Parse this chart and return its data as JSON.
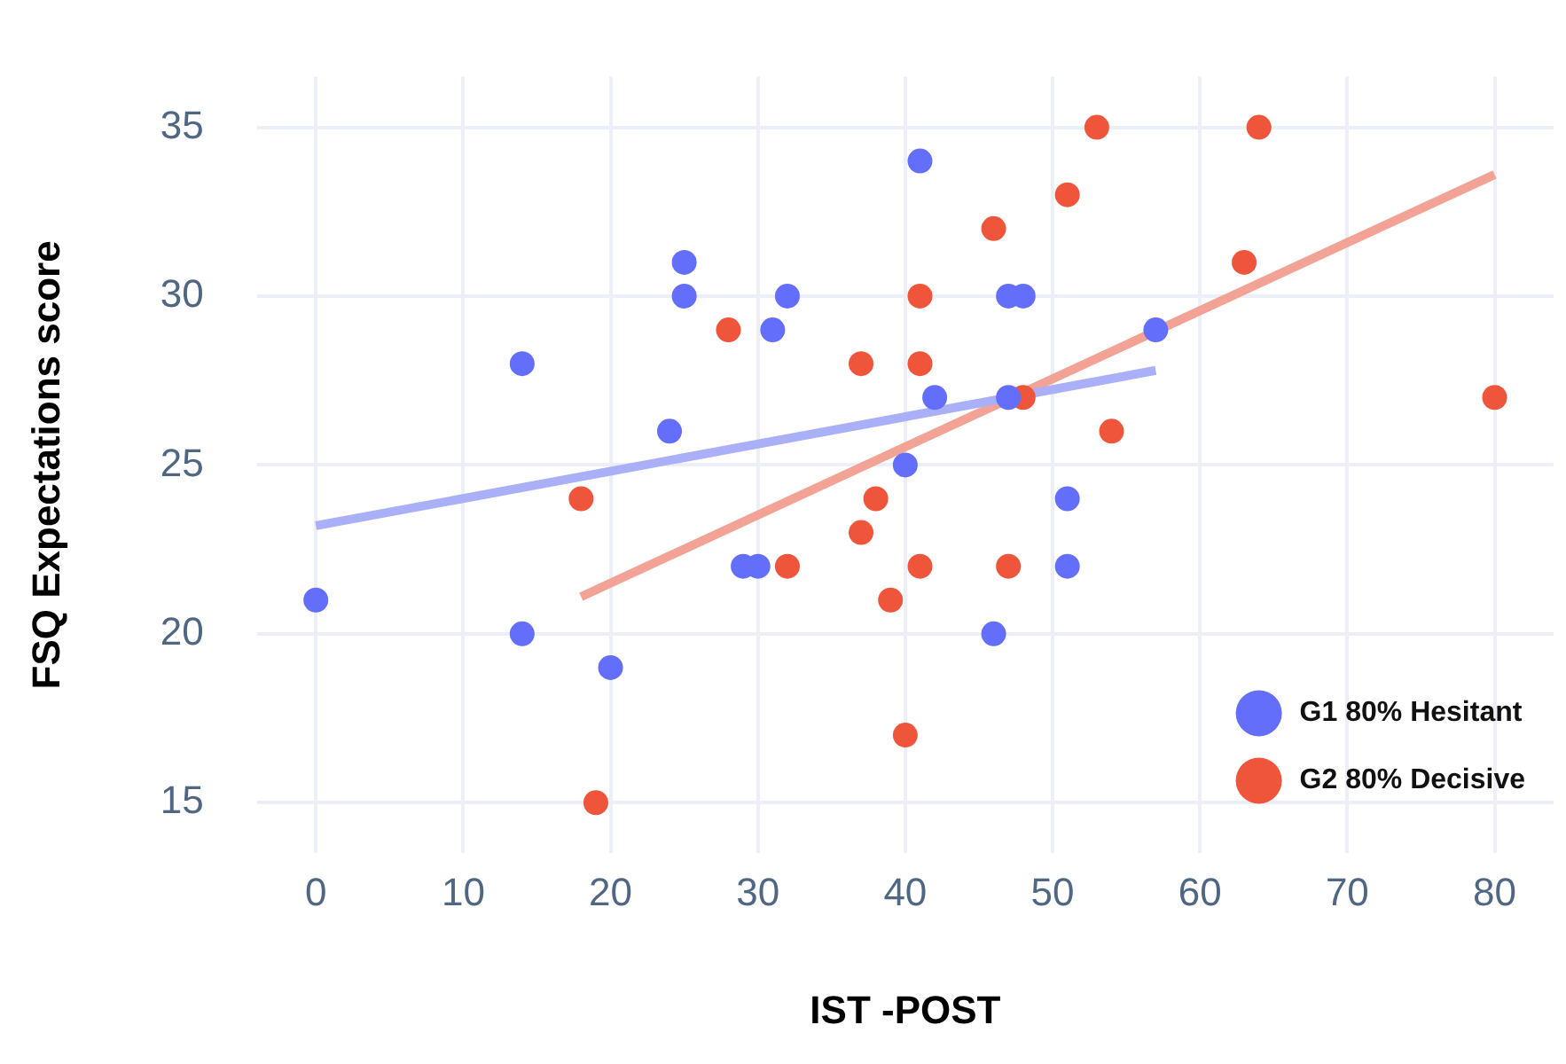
{
  "chart_data": {
    "type": "scatter",
    "xlabel": "IST -POST",
    "ylabel": "FSQ Expectations score",
    "xlim": [
      -4,
      84
    ],
    "xticks": [
      0,
      10,
      20,
      30,
      40,
      50,
      60,
      70,
      80
    ],
    "ylim": [
      13.5,
      36.5
    ],
    "yticks": [
      15,
      20,
      25,
      30,
      35
    ],
    "grid": true,
    "legend": "bottom right",
    "marker": "circle",
    "series": [
      {
        "name": "G1 80% Hesitant",
        "color": "#636efa",
        "x": [
          0,
          14,
          14,
          20,
          24,
          25,
          25,
          29,
          30,
          31,
          32,
          40,
          41,
          42,
          46,
          47,
          48,
          47,
          51,
          51,
          57
        ],
        "values": [
          21,
          28,
          20,
          19,
          26,
          31,
          30,
          22,
          22,
          29,
          30,
          25,
          34,
          27,
          20,
          30,
          30,
          27,
          24,
          22,
          29
        ]
      },
      {
        "name": "G2 80% Decisive",
        "color": "#ef553b",
        "x": [
          18,
          19,
          28,
          32,
          37,
          37,
          38,
          39,
          40,
          41,
          41,
          41,
          46,
          47,
          48,
          51,
          53,
          54,
          63,
          64,
          80
        ],
        "values": [
          24,
          15,
          29,
          22,
          28,
          23,
          24,
          21,
          17,
          30,
          28,
          22,
          32,
          22,
          27,
          33,
          35,
          26,
          31,
          35,
          27
        ]
      },
      {
        "type": "line",
        "color": "#aab0f8",
        "marker": "none",
        "x": [
          0,
          57
        ],
        "values": [
          23.2,
          27.8
        ]
      },
      {
        "type": "line",
        "color": "#f2a395",
        "marker": "none",
        "x": [
          18,
          80
        ],
        "values": [
          21.1,
          33.6
        ]
      }
    ]
  }
}
